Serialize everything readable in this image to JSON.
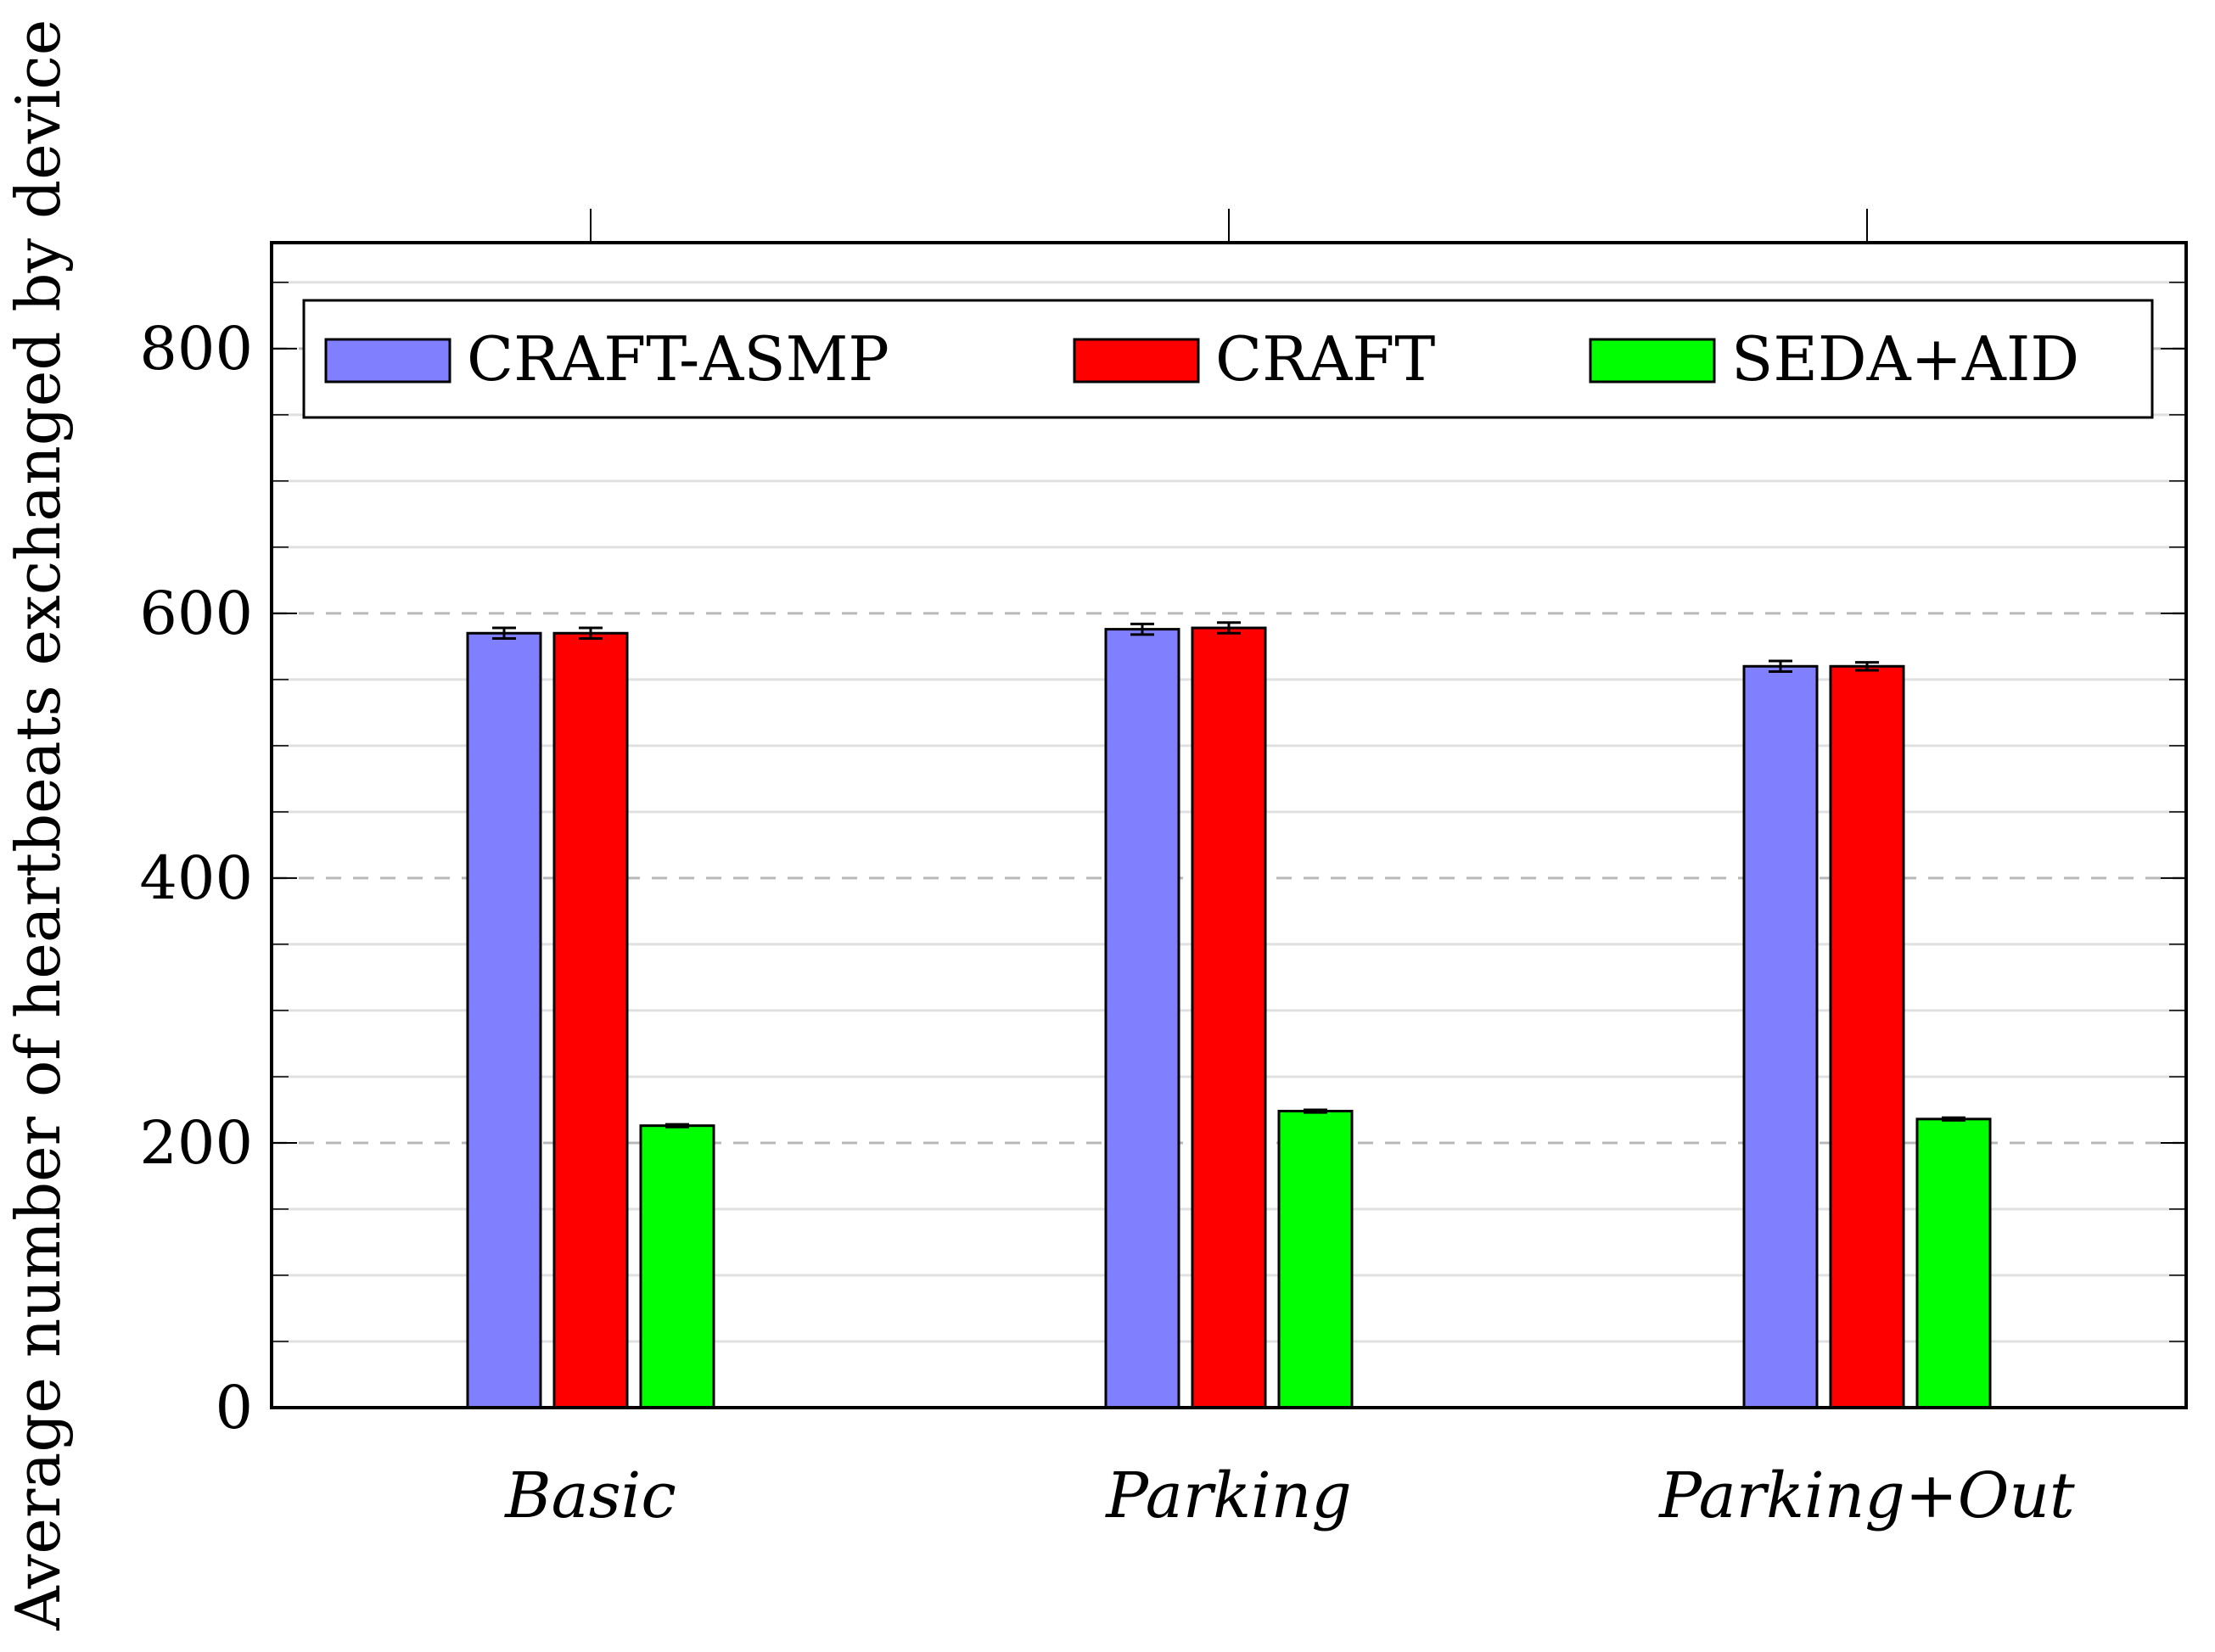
{
  "chart_data": {
    "type": "bar",
    "title": "",
    "xlabel": "",
    "ylabel": "Average number of heartbeats exchanged by device",
    "ylim": [
      0,
      880
    ],
    "yticks": [
      0,
      200,
      400,
      600,
      800
    ],
    "grid": {
      "major_dashed": true,
      "minor_solid": true,
      "minor_step": 50
    },
    "legend_position": "top",
    "categories": [
      "Basic",
      "Parking",
      "Parking+Out"
    ],
    "series": [
      {
        "name": "CRAFT-ASMP",
        "color": "#8080ff",
        "values": [
          585,
          588,
          560
        ],
        "errors": [
          4,
          4,
          4
        ]
      },
      {
        "name": "CRAFT",
        "color": "#ff0000",
        "values": [
          585,
          589,
          560
        ],
        "errors": [
          4,
          4,
          3
        ]
      },
      {
        "name": "SEDA+AID",
        "color": "#00ff00",
        "values": [
          213,
          224,
          218
        ],
        "errors": [
          1,
          1,
          1
        ]
      }
    ]
  }
}
